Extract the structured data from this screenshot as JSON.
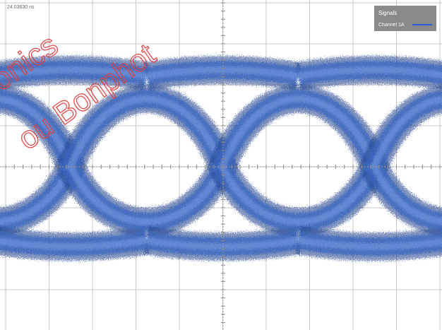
{
  "header": {
    "timestamp": "24.03630 ns"
  },
  "legend": {
    "title": "Signals",
    "entries": [
      "Channel 1A"
    ]
  },
  "watermark": {
    "lines": [
      "tronics",
      "ou Bonphot"
    ]
  }
}
